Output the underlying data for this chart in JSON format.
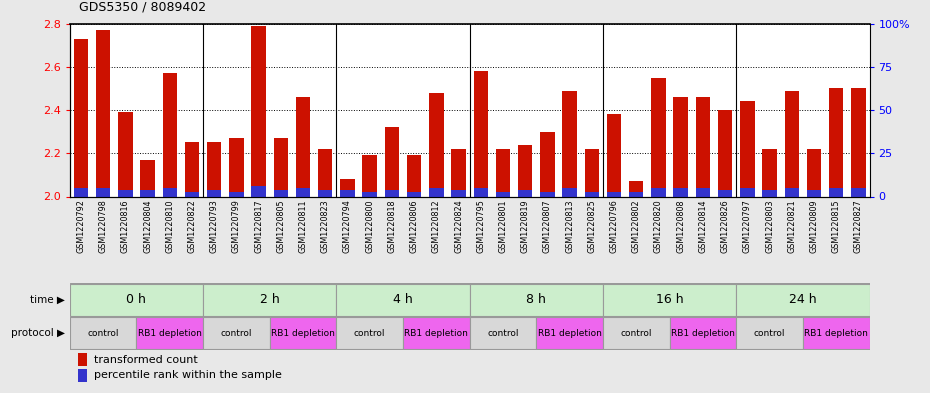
{
  "title": "GDS5350 / 8089402",
  "samples": [
    "GSM1220792",
    "GSM1220798",
    "GSM1220816",
    "GSM1220804",
    "GSM1220810",
    "GSM1220822",
    "GSM1220793",
    "GSM1220799",
    "GSM1220817",
    "GSM1220805",
    "GSM1220811",
    "GSM1220823",
    "GSM1220794",
    "GSM1220800",
    "GSM1220818",
    "GSM1220806",
    "GSM1220812",
    "GSM1220824",
    "GSM1220795",
    "GSM1220801",
    "GSM1220819",
    "GSM1220807",
    "GSM1220813",
    "GSM1220825",
    "GSM1220796",
    "GSM1220802",
    "GSM1220820",
    "GSM1220808",
    "GSM1220814",
    "GSM1220826",
    "GSM1220797",
    "GSM1220803",
    "GSM1220821",
    "GSM1220809",
    "GSM1220815",
    "GSM1220827"
  ],
  "red_values": [
    2.73,
    2.77,
    2.39,
    2.17,
    2.57,
    2.25,
    2.25,
    2.27,
    2.79,
    2.27,
    2.46,
    2.22,
    2.08,
    2.19,
    2.32,
    2.19,
    2.48,
    2.22,
    2.58,
    2.22,
    2.24,
    2.3,
    2.49,
    2.22,
    2.38,
    2.07,
    2.55,
    2.46,
    2.46,
    2.4,
    2.44,
    2.22,
    2.49,
    2.22,
    2.5,
    2.5
  ],
  "blue_values": [
    0.04,
    0.04,
    0.03,
    0.03,
    0.04,
    0.02,
    0.03,
    0.02,
    0.05,
    0.03,
    0.04,
    0.03,
    0.03,
    0.02,
    0.03,
    0.02,
    0.04,
    0.03,
    0.04,
    0.02,
    0.03,
    0.02,
    0.04,
    0.02,
    0.02,
    0.02,
    0.04,
    0.04,
    0.04,
    0.03,
    0.04,
    0.03,
    0.04,
    0.03,
    0.04,
    0.04
  ],
  "ylim_left": [
    2.0,
    2.8
  ],
  "ylim_right": [
    0,
    100
  ],
  "yticks_left": [
    2.0,
    2.2,
    2.4,
    2.6,
    2.8
  ],
  "yticks_right": [
    0,
    25,
    50,
    75,
    100
  ],
  "ytick_labels_right": [
    "0",
    "25",
    "50",
    "75",
    "100%"
  ],
  "bar_color_red": "#cc1100",
  "bar_color_blue": "#3333cc",
  "time_groups": [
    {
      "label": "0 h",
      "start": 0,
      "end": 6
    },
    {
      "label": "2 h",
      "start": 6,
      "end": 12
    },
    {
      "label": "4 h",
      "start": 12,
      "end": 18
    },
    {
      "label": "8 h",
      "start": 18,
      "end": 24
    },
    {
      "label": "16 h",
      "start": 24,
      "end": 30
    },
    {
      "label": "24 h",
      "start": 30,
      "end": 36
    }
  ],
  "protocol_groups": [
    {
      "label": "control",
      "start": 0,
      "end": 3,
      "color": "#d8d8d8"
    },
    {
      "label": "RB1 depletion",
      "start": 3,
      "end": 6,
      "color": "#ee66ee"
    },
    {
      "label": "control",
      "start": 6,
      "end": 9,
      "color": "#d8d8d8"
    },
    {
      "label": "RB1 depletion",
      "start": 9,
      "end": 12,
      "color": "#ee66ee"
    },
    {
      "label": "control",
      "start": 12,
      "end": 15,
      "color": "#d8d8d8"
    },
    {
      "label": "RB1 depletion",
      "start": 15,
      "end": 18,
      "color": "#ee66ee"
    },
    {
      "label": "control",
      "start": 18,
      "end": 21,
      "color": "#d8d8d8"
    },
    {
      "label": "RB1 depletion",
      "start": 21,
      "end": 24,
      "color": "#ee66ee"
    },
    {
      "label": "control",
      "start": 24,
      "end": 27,
      "color": "#d8d8d8"
    },
    {
      "label": "RB1 depletion",
      "start": 27,
      "end": 30,
      "color": "#ee66ee"
    },
    {
      "label": "control",
      "start": 30,
      "end": 33,
      "color": "#d8d8d8"
    },
    {
      "label": "RB1 depletion",
      "start": 33,
      "end": 36,
      "color": "#ee66ee"
    }
  ],
  "time_bg_color": "#aaddaa",
  "time_bg_light": "#cceecc",
  "legend_red": "transformed count",
  "legend_blue": "percentile rank within the sample",
  "fig_bg": "#e8e8e8",
  "bar_width": 0.65
}
